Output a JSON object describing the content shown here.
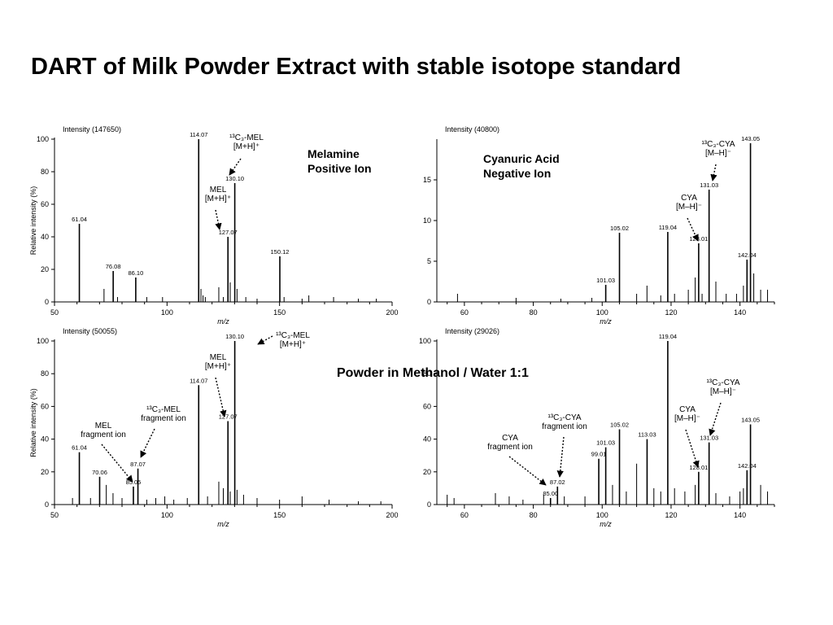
{
  "title": "DART of Milk Powder Extract with stable isotope standard",
  "subtitle": "Powder in Methanol / Water 1:1",
  "ylabel": "Relative intensity (%)",
  "chart_data": [
    {
      "type": "bar",
      "id": "tl",
      "intensity": "Intensity (147650)",
      "xlabel": "m/z",
      "xlim": [
        50,
        200
      ],
      "ylim": [
        0,
        100
      ],
      "xticks": [
        50,
        100,
        150,
        200
      ],
      "yticks": [
        0,
        20,
        40,
        60,
        80,
        100
      ],
      "peaks": [
        {
          "x": 61.04,
          "y": 48,
          "label": "61.04"
        },
        {
          "x": 76.08,
          "y": 19,
          "label": "76.08"
        },
        {
          "x": 86.1,
          "y": 15,
          "label": "86.10"
        },
        {
          "x": 114.07,
          "y": 100,
          "label": "114.07"
        },
        {
          "x": 127.07,
          "y": 40,
          "label": "127.07"
        },
        {
          "x": 130.1,
          "y": 73,
          "label": "130.10"
        },
        {
          "x": 150.12,
          "y": 28,
          "label": "150.12"
        },
        {
          "x": 72,
          "y": 8
        },
        {
          "x": 78,
          "y": 3
        },
        {
          "x": 91,
          "y": 3
        },
        {
          "x": 98,
          "y": 3
        },
        {
          "x": 115.07,
          "y": 8
        },
        {
          "x": 116,
          "y": 4
        },
        {
          "x": 117,
          "y": 3
        },
        {
          "x": 123,
          "y": 9
        },
        {
          "x": 125,
          "y": 3
        },
        {
          "x": 128.07,
          "y": 12
        },
        {
          "x": 131.1,
          "y": 8
        },
        {
          "x": 135,
          "y": 3
        },
        {
          "x": 140,
          "y": 2
        },
        {
          "x": 152,
          "y": 3
        },
        {
          "x": 160,
          "y": 2
        },
        {
          "x": 163,
          "y": 4
        },
        {
          "x": 174,
          "y": 3
        },
        {
          "x": 185,
          "y": 2
        },
        {
          "x": 193,
          "y": 2
        }
      ],
      "annotations": [
        {
          "lines": [
            "¹³C₃-MEL",
            "[M+H]⁺"
          ],
          "pos": [
            303,
            172
          ],
          "arrow": [
            [
              296,
              195
            ],
            [
              282,
              215
            ]
          ]
        },
        {
          "lines": [
            "MEL",
            "[M+H]⁺"
          ],
          "pos": [
            268,
            236
          ],
          "arrow": [
            [
              265,
              258
            ],
            [
              270,
              282
            ]
          ]
        },
        {
          "lines": [
            "Melamine",
            "Positive Ion"
          ],
          "pos": [
            378,
            194
          ],
          "style": "title"
        }
      ]
    },
    {
      "type": "bar",
      "id": "tr",
      "intensity": "Intensity (40800)",
      "xlabel": "m/z",
      "xlim": [
        52,
        150
      ],
      "ylim": [
        0,
        20
      ],
      "xticks": [
        60,
        80,
        100,
        120,
        140
      ],
      "yticks": [
        0,
        5,
        10,
        15
      ],
      "peaks": [
        {
          "x": 101.03,
          "y": 2.1,
          "label": "101.03"
        },
        {
          "x": 105.02,
          "y": 8.5,
          "label": "105.02"
        },
        {
          "x": 119.04,
          "y": 8.6,
          "label": "119.04"
        },
        {
          "x": 128.01,
          "y": 7.2,
          "label": "128.01"
        },
        {
          "x": 131.03,
          "y": 13.8,
          "label": "131.03"
        },
        {
          "x": 142.04,
          "y": 5.2,
          "label": "142.04"
        },
        {
          "x": 143.05,
          "y": 19.5,
          "label": "143.05"
        },
        {
          "x": 58,
          "y": 1
        },
        {
          "x": 75,
          "y": 0.5
        },
        {
          "x": 88,
          "y": 0.4
        },
        {
          "x": 97,
          "y": 0.5
        },
        {
          "x": 110,
          "y": 1
        },
        {
          "x": 113,
          "y": 2
        },
        {
          "x": 117,
          "y": 0.8
        },
        {
          "x": 121,
          "y": 1
        },
        {
          "x": 125,
          "y": 1.5
        },
        {
          "x": 127,
          "y": 3
        },
        {
          "x": 129,
          "y": 1
        },
        {
          "x": 133,
          "y": 2.5
        },
        {
          "x": 136,
          "y": 1
        },
        {
          "x": 139,
          "y": 1
        },
        {
          "x": 141,
          "y": 2
        },
        {
          "x": 144,
          "y": 3.5
        },
        {
          "x": 146,
          "y": 1.5
        },
        {
          "x": 148,
          "y": 1.5
        }
      ],
      "annotations": [
        {
          "lines": [
            "¹³C₃-CYA",
            "[M–H]⁻"
          ],
          "pos": [
            883,
            180
          ],
          "arrow": [
            [
              880,
              202
            ],
            [
              876,
              222
            ]
          ]
        },
        {
          "lines": [
            "CYA",
            "[M–H]⁻"
          ],
          "pos": [
            847,
            246
          ],
          "arrow": [
            [
              845,
              268
            ],
            [
              858,
              296
            ]
          ]
        },
        {
          "lines": [
            "Cyanuric Acid",
            "Negative Ion"
          ],
          "pos": [
            594,
            200
          ],
          "style": "title"
        }
      ]
    },
    {
      "type": "bar",
      "id": "bl",
      "intensity": "Intensity (50055)",
      "xlabel": "m/z",
      "xlim": [
        50,
        200
      ],
      "ylim": [
        0,
        100
      ],
      "xticks": [
        50,
        100,
        150,
        200
      ],
      "yticks": [
        0,
        20,
        40,
        60,
        80,
        100
      ],
      "peaks": [
        {
          "x": 61.04,
          "y": 32,
          "label": "61.04"
        },
        {
          "x": 70.06,
          "y": 17,
          "label": "70.06"
        },
        {
          "x": 85.05,
          "y": 11,
          "label": "85.05"
        },
        {
          "x": 87.07,
          "y": 22,
          "label": "87.07"
        },
        {
          "x": 114.07,
          "y": 73,
          "label": "114.07"
        },
        {
          "x": 127.07,
          "y": 51,
          "label": "127.07"
        },
        {
          "x": 130.1,
          "y": 100,
          "label": "130.10"
        },
        {
          "x": 58,
          "y": 4
        },
        {
          "x": 66,
          "y": 4
        },
        {
          "x": 73,
          "y": 12
        },
        {
          "x": 76,
          "y": 7
        },
        {
          "x": 80,
          "y": 4
        },
        {
          "x": 91,
          "y": 3
        },
        {
          "x": 95,
          "y": 4
        },
        {
          "x": 99,
          "y": 5
        },
        {
          "x": 103,
          "y": 3
        },
        {
          "x": 109,
          "y": 4
        },
        {
          "x": 118,
          "y": 5
        },
        {
          "x": 123,
          "y": 14
        },
        {
          "x": 125,
          "y": 10
        },
        {
          "x": 128.07,
          "y": 8
        },
        {
          "x": 131.1,
          "y": 9
        },
        {
          "x": 134,
          "y": 6
        },
        {
          "x": 140,
          "y": 4
        },
        {
          "x": 150,
          "y": 3
        },
        {
          "x": 160,
          "y": 5
        },
        {
          "x": 172,
          "y": 3
        },
        {
          "x": 185,
          "y": 2
        },
        {
          "x": 195,
          "y": 2
        }
      ],
      "annotations": [
        {
          "lines": [
            "¹³C₃-MEL",
            "[M+H]⁺"
          ],
          "pos": [
            360,
            415
          ],
          "arrow": [
            [
              335,
              413
            ],
            [
              317,
              423
            ]
          ]
        },
        {
          "lines": [
            "MEL",
            "[M+H]⁺"
          ],
          "pos": [
            268,
            442
          ],
          "arrow": [
            [
              265,
              464
            ],
            [
              276,
              512
            ]
          ]
        },
        {
          "lines": [
            "¹³C₃-MEL",
            "fragment ion"
          ],
          "pos": [
            201,
            506
          ],
          "arrow": [
            [
              190,
              527
            ],
            [
              173,
              562
            ]
          ]
        },
        {
          "lines": [
            "MEL",
            "fragment ion"
          ],
          "pos": [
            127,
            526
          ],
          "arrow": [
            [
              125,
              546
            ],
            [
              163,
              592
            ]
          ]
        }
      ]
    },
    {
      "type": "bar",
      "id": "br",
      "intensity": "Intensity (29026)",
      "xlabel": "m/z",
      "xlim": [
        52,
        150
      ],
      "ylim": [
        0,
        100
      ],
      "xticks": [
        60,
        80,
        100,
        120,
        140
      ],
      "yticks": [
        0,
        20,
        40,
        60,
        80,
        100
      ],
      "peaks": [
        {
          "x": 85.0,
          "y": 4,
          "label": "85.00"
        },
        {
          "x": 87.02,
          "y": 11,
          "label": "87.02"
        },
        {
          "x": 99.01,
          "y": 28,
          "label": "99.01"
        },
        {
          "x": 101.03,
          "y": 35,
          "label": "101.03"
        },
        {
          "x": 105.02,
          "y": 46,
          "label": "105.02"
        },
        {
          "x": 113.03,
          "y": 40,
          "label": "113.03"
        },
        {
          "x": 119.04,
          "y": 100,
          "label": "119.04"
        },
        {
          "x": 128.01,
          "y": 20,
          "label": "128.01"
        },
        {
          "x": 131.03,
          "y": 38,
          "label": "131.03"
        },
        {
          "x": 142.04,
          "y": 21,
          "label": "142.04"
        },
        {
          "x": 143.05,
          "y": 49,
          "label": "143.05"
        },
        {
          "x": 55,
          "y": 6
        },
        {
          "x": 57,
          "y": 4
        },
        {
          "x": 69,
          "y": 7
        },
        {
          "x": 73,
          "y": 5
        },
        {
          "x": 77,
          "y": 3
        },
        {
          "x": 83,
          "y": 6
        },
        {
          "x": 89,
          "y": 5
        },
        {
          "x": 95,
          "y": 5
        },
        {
          "x": 103,
          "y": 12
        },
        {
          "x": 107,
          "y": 8
        },
        {
          "x": 110,
          "y": 25
        },
        {
          "x": 115,
          "y": 10
        },
        {
          "x": 117,
          "y": 8
        },
        {
          "x": 121,
          "y": 10
        },
        {
          "x": 124,
          "y": 8
        },
        {
          "x": 127,
          "y": 12
        },
        {
          "x": 133,
          "y": 7
        },
        {
          "x": 137,
          "y": 5
        },
        {
          "x": 140,
          "y": 8
        },
        {
          "x": 141,
          "y": 10
        },
        {
          "x": 146,
          "y": 12
        },
        {
          "x": 148,
          "y": 8
        }
      ],
      "annotations": [
        {
          "lines": [
            "¹³C₃-CYA",
            "[M–H]⁻"
          ],
          "pos": [
            889,
            473
          ],
          "arrow": [
            [
              886,
              495
            ],
            [
              873,
              535
            ]
          ]
        },
        {
          "lines": [
            "CYA",
            "[M–H]⁻"
          ],
          "pos": [
            845,
            506
          ],
          "arrow": [
            [
              843,
              528
            ],
            [
              858,
              574
            ]
          ]
        },
        {
          "lines": [
            "¹³C₃-CYA",
            "fragment ion"
          ],
          "pos": [
            694,
            516
          ],
          "arrow": [
            [
              693,
              537
            ],
            [
              688,
              586
            ]
          ]
        },
        {
          "lines": [
            "CYA",
            "fragment ion"
          ],
          "pos": [
            627,
            541
          ],
          "arrow": [
            [
              626,
              561
            ],
            [
              671,
              596
            ]
          ]
        }
      ]
    }
  ]
}
